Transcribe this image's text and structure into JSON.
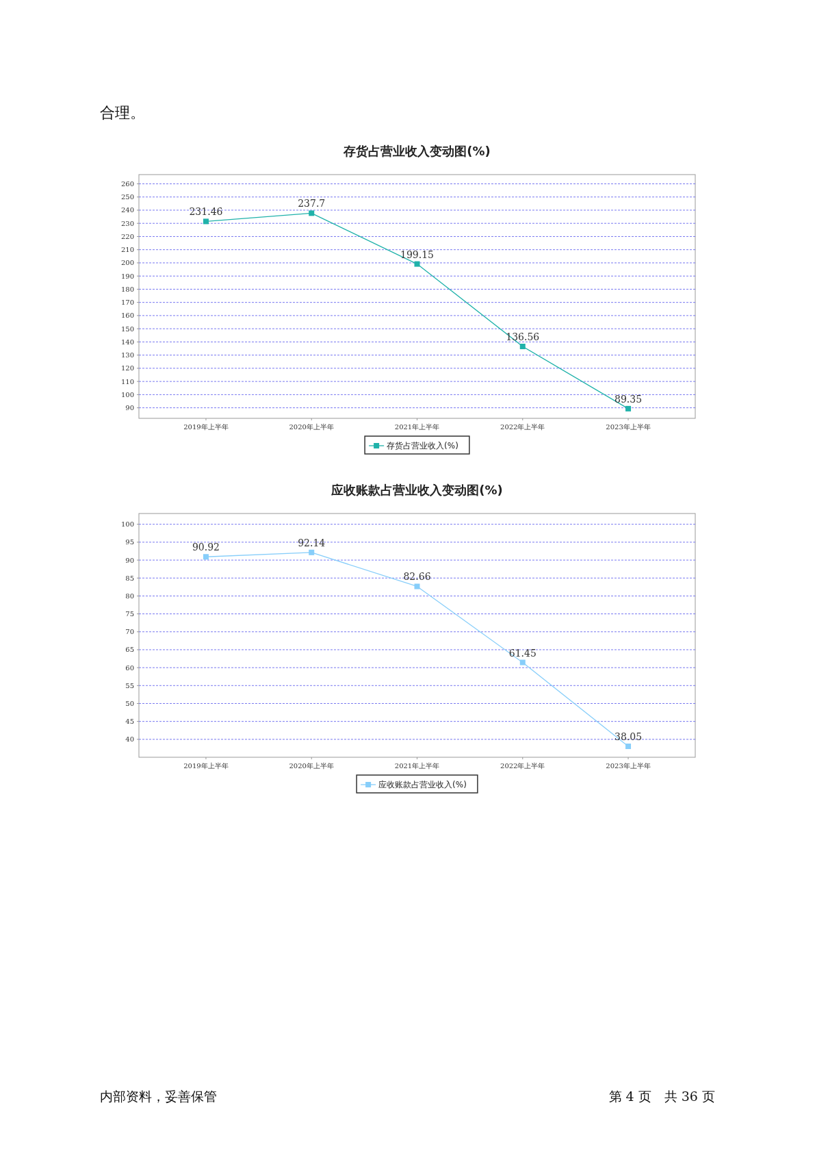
{
  "chart_data": [
    {
      "type": "line",
      "title": "存货占营业收入变动图(%)",
      "annotations": [
        "合理。"
      ],
      "categories": [
        "2019年上半年",
        "2020年上半年",
        "2021年上半年",
        "2022年上半年",
        "2023年上半年"
      ],
      "series": [
        {
          "name": "存货占营业收入(%)",
          "color": "#20b2aa",
          "values": [
            231.46,
            237.7,
            199.15,
            136.56,
            89.35
          ]
        }
      ],
      "ylim": [
        82,
        267
      ],
      "yticks": [
        90,
        100,
        110,
        120,
        130,
        140,
        150,
        160,
        170,
        180,
        190,
        200,
        210,
        220,
        230,
        240,
        250,
        260
      ],
      "grid": "y",
      "legend": "bottom",
      "marker": "square",
      "line_style": "solid",
      "data_labels": true
    },
    {
      "type": "line",
      "title": "应收账款占营业收入变动图(%)",
      "annotations": [
        "内部资料，妥善保管",
        "第 4 页　共 36 页"
      ],
      "categories": [
        "2019年上半年",
        "2020年上半年",
        "2021年上半年",
        "2022年上半年",
        "2023年上半年"
      ],
      "series": [
        {
          "name": "应收账款占营业收入(%)",
          "color": "#87cefa",
          "values": [
            90.92,
            92.14,
            82.66,
            61.45,
            38.05
          ]
        }
      ],
      "ylim": [
        35,
        103
      ],
      "yticks": [
        40,
        45,
        50,
        55,
        60,
        65,
        70,
        75,
        80,
        85,
        90,
        95,
        100
      ],
      "grid": "y",
      "legend": "bottom",
      "marker": "square",
      "line_style": "solid",
      "data_labels": true
    }
  ]
}
